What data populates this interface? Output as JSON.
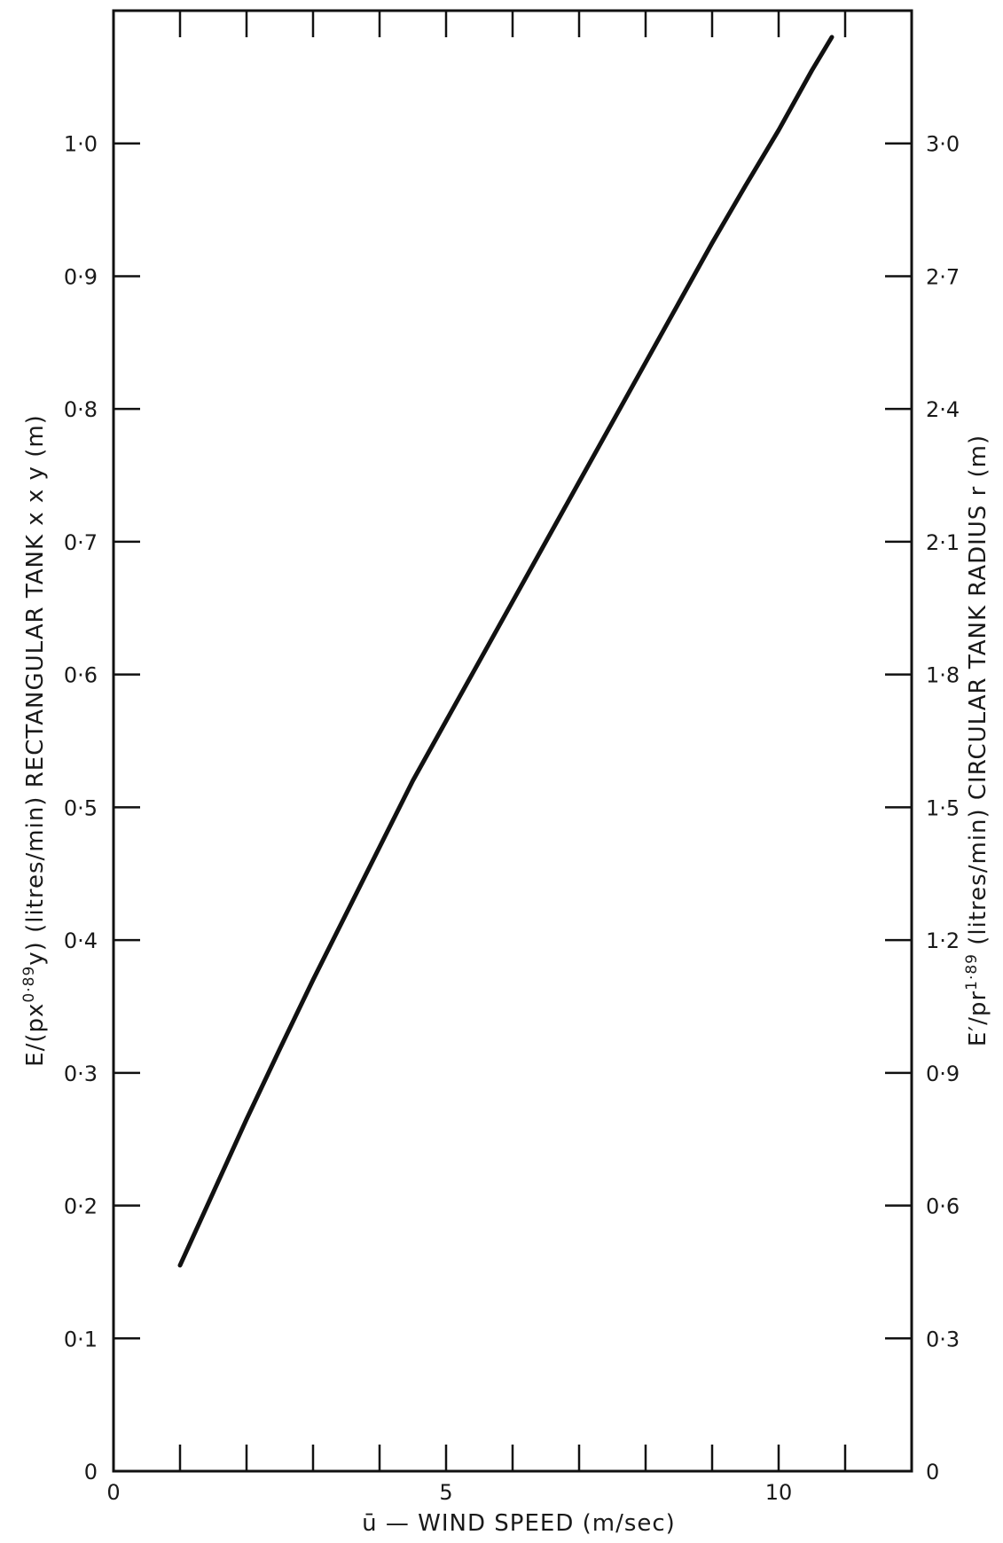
{
  "chart_data": {
    "type": "line",
    "title": "",
    "xlabel": "ū — WIND SPEED (m/sec)",
    "ylabel_left": {
      "prefix": "E/(px",
      "sup": "0·89",
      "suffix": "y) (litres/min) RECTANGULAR TANK x x y (m)"
    },
    "ylabel_right": {
      "prefix": "E′/pr",
      "sup": "1·89",
      "suffix": " (litres/min) CIRCULAR TANK RADIUS r (m)"
    },
    "xlim": [
      0,
      12
    ],
    "ylim": [
      0,
      1.1
    ],
    "ylim_right": [
      0,
      3.3
    ],
    "x_ticks_minor": [
      1,
      2,
      3,
      4,
      5,
      6,
      7,
      8,
      9,
      10,
      11
    ],
    "x_tick_labels": [
      {
        "value": 0,
        "label": "0"
      },
      {
        "value": 5,
        "label": "5"
      },
      {
        "value": 10,
        "label": "10"
      }
    ],
    "y_ticks_left": [
      {
        "value": 0,
        "label": "0"
      },
      {
        "value": 0.1,
        "label": "0·1"
      },
      {
        "value": 0.2,
        "label": "0·2"
      },
      {
        "value": 0.3,
        "label": "0·3"
      },
      {
        "value": 0.4,
        "label": "0·4"
      },
      {
        "value": 0.5,
        "label": "0·5"
      },
      {
        "value": 0.6,
        "label": "0·6"
      },
      {
        "value": 0.7,
        "label": "0·7"
      },
      {
        "value": 0.8,
        "label": "0·8"
      },
      {
        "value": 0.9,
        "label": "0·9"
      },
      {
        "value": 1.0,
        "label": "1·0"
      }
    ],
    "y_ticks_right": [
      {
        "value": 0,
        "label": "0"
      },
      {
        "value": 0.3,
        "label": "0·3"
      },
      {
        "value": 0.6,
        "label": "0·6"
      },
      {
        "value": 0.9,
        "label": "0·9"
      },
      {
        "value": 1.2,
        "label": "1·2"
      },
      {
        "value": 1.5,
        "label": "1·5"
      },
      {
        "value": 1.8,
        "label": "1·8"
      },
      {
        "value": 2.1,
        "label": "2·1"
      },
      {
        "value": 2.4,
        "label": "2·4"
      },
      {
        "value": 2.7,
        "label": "2·7"
      },
      {
        "value": 3.0,
        "label": "3·0"
      }
    ],
    "grid": false,
    "legend": "none",
    "series": [
      {
        "x": [
          1.0,
          1.5,
          2.0,
          2.5,
          3.0,
          3.5,
          4.0,
          4.5,
          5.0,
          5.5,
          6.0,
          6.5,
          7.0,
          7.5,
          8.0,
          8.5,
          9.0,
          9.5,
          10.0,
          10.5,
          10.8
        ],
        "y": [
          0.155,
          0.21,
          0.265,
          0.318,
          0.37,
          0.42,
          0.47,
          0.52,
          0.565,
          0.61,
          0.655,
          0.7,
          0.745,
          0.79,
          0.835,
          0.88,
          0.925,
          0.968,
          1.01,
          1.055,
          1.08
        ]
      }
    ]
  }
}
